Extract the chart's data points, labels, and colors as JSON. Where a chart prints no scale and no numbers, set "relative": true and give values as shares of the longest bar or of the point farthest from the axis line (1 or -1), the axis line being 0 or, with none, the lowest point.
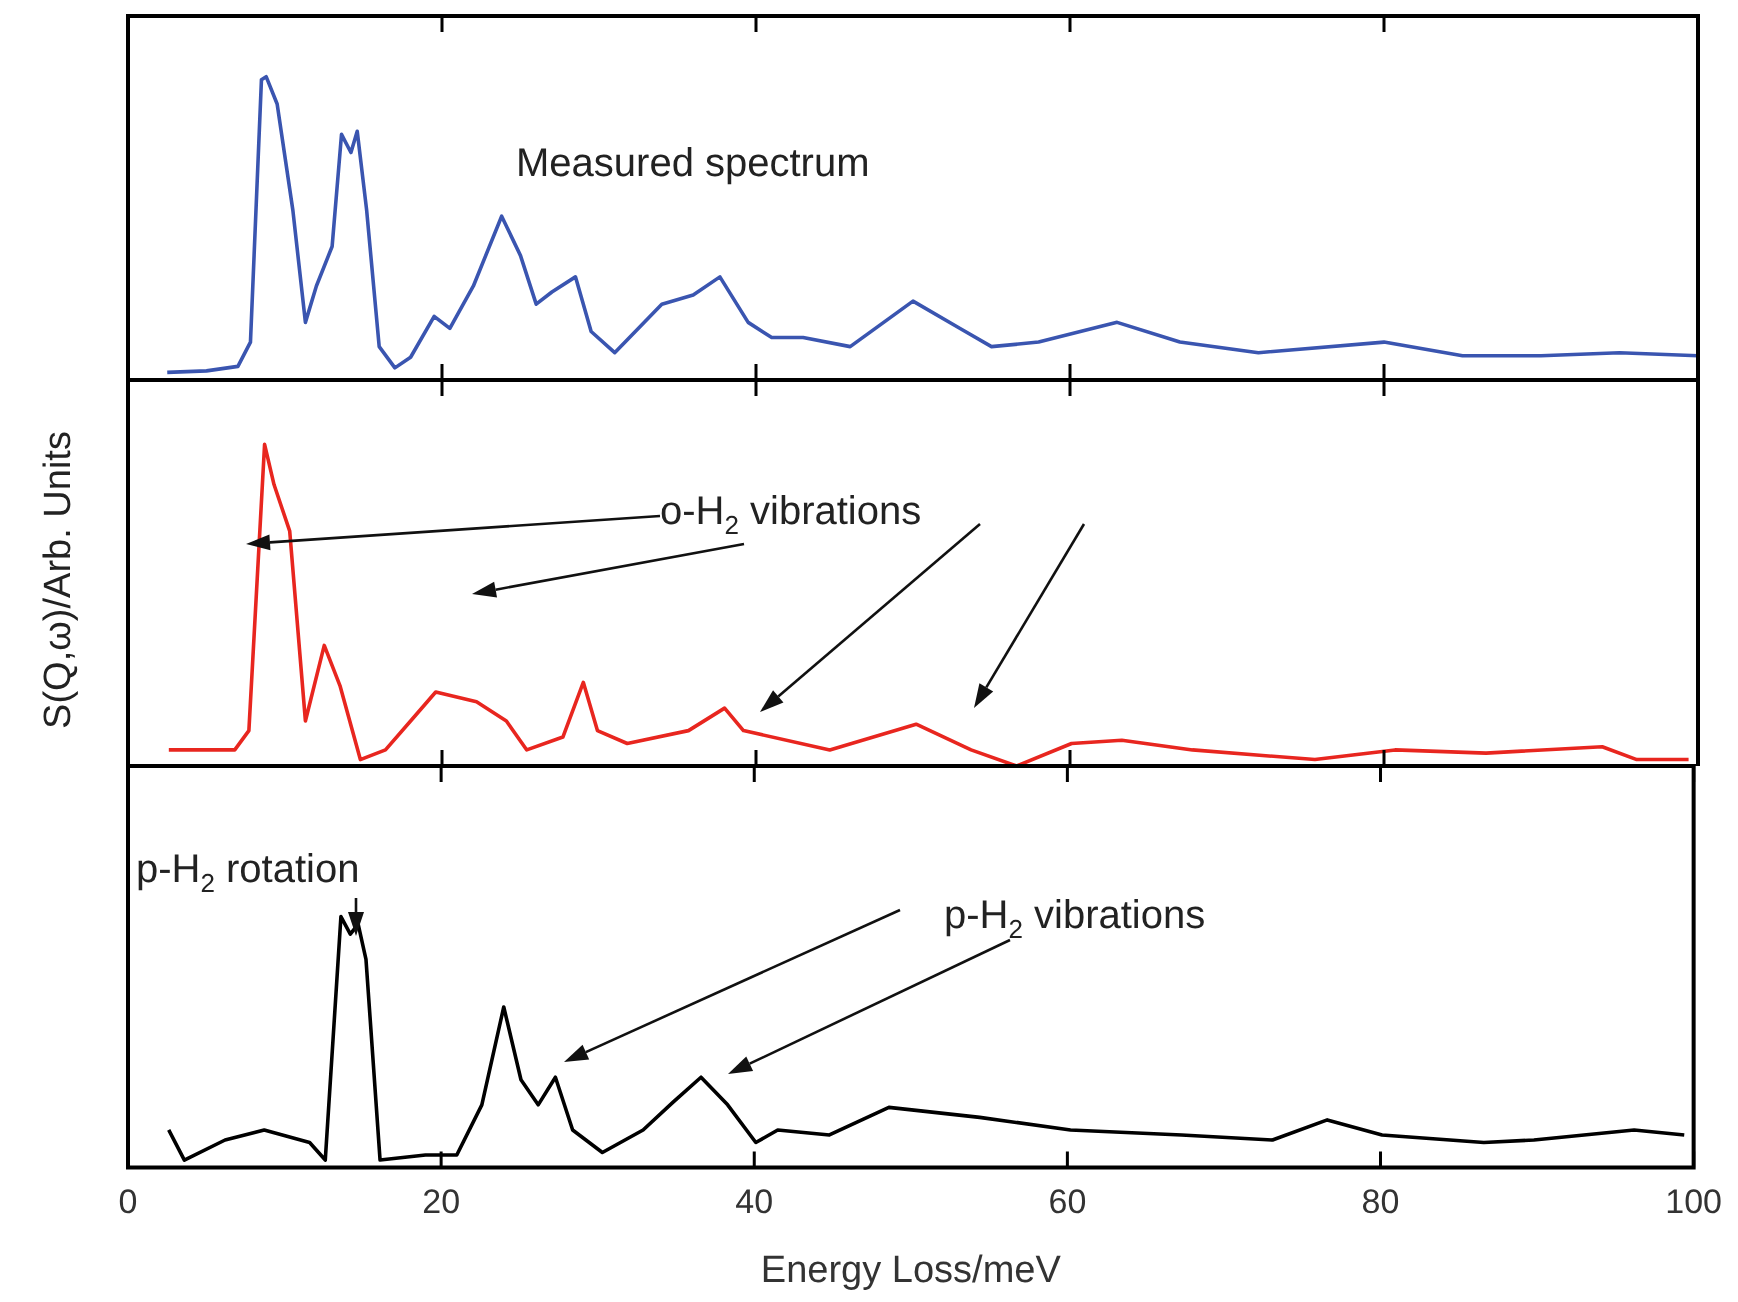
{
  "chart_data": [
    {
      "type": "line",
      "relative": true,
      "color": "#3a55b0",
      "marker": "none",
      "tick_labels": false,
      "xlim": [
        0,
        100
      ],
      "xticks": [
        0,
        20,
        40,
        60,
        80,
        100
      ],
      "annotations": [
        "Measured spectrum"
      ],
      "x": [
        2.5,
        5,
        7,
        7.8,
        8.5,
        8.8,
        9.5,
        10.5,
        11.3,
        12,
        13,
        13.6,
        14.2,
        14.6,
        15.2,
        16,
        17,
        18,
        19.5,
        20.5,
        22,
        23.8,
        25,
        26,
        27,
        28.5,
        29.5,
        31,
        34,
        36,
        37.7,
        39.5,
        41,
        43,
        46,
        50,
        53,
        55,
        58,
        63,
        67,
        72,
        80,
        85,
        90,
        95,
        100
      ],
      "values": [
        0.025,
        0.03,
        0.045,
        0.125,
        0.99,
        1,
        0.91,
        0.56,
        0.19,
        0.31,
        0.44,
        0.81,
        0.75,
        0.82,
        0.56,
        0.11,
        0.04,
        0.075,
        0.21,
        0.17,
        0.31,
        0.54,
        0.41,
        0.25,
        0.29,
        0.34,
        0.16,
        0.09,
        0.25,
        0.28,
        0.34,
        0.19,
        0.14,
        0.14,
        0.11,
        0.26,
        0.17,
        0.11,
        0.125,
        0.19,
        0.125,
        0.09,
        0.125,
        0.08,
        0.08,
        0.09,
        0.08
      ]
    },
    {
      "type": "line",
      "relative": true,
      "color": "#e8261f",
      "marker": "none",
      "tick_labels": false,
      "xlim": [
        0,
        100
      ],
      "xticks": [
        0,
        20,
        40,
        60,
        80,
        100
      ],
      "ylabel": "S(Q,ω)/Arb. Units",
      "annotations": [
        "o-H$_{2}$ vibrations"
      ],
      "x": [
        2.6,
        6.8,
        7.7,
        8.7,
        9.3,
        10.3,
        11.3,
        12.5,
        13.5,
        14.8,
        16.4,
        18,
        19.6,
        22.2,
        24.1,
        25.4,
        27.7,
        29,
        29.9,
        31.8,
        35.7,
        38,
        39.2,
        44.7,
        50.2,
        53.7,
        56.6,
        60.1,
        63.3,
        67.8,
        75.6,
        80.7,
        86.5,
        93.9,
        96.1,
        99.4
      ],
      "values": [
        0.05,
        0.05,
        0.11,
        1,
        0.875,
        0.73,
        0.14,
        0.375,
        0.25,
        0.02,
        0.05,
        0.14,
        0.23,
        0.2,
        0.14,
        0.05,
        0.09,
        0.26,
        0.11,
        0.07,
        0.11,
        0.18,
        0.11,
        0.05,
        0.13,
        0.05,
        0,
        0.07,
        0.08,
        0.05,
        0.02,
        0.05,
        0.04,
        0.06,
        0.02,
        0.02
      ]
    },
    {
      "type": "line",
      "relative": true,
      "color": "#000000",
      "marker": "none",
      "tick_labels": "x",
      "xlim": [
        0,
        100
      ],
      "xticks": [
        0,
        20,
        40,
        60,
        80,
        100
      ],
      "xlabel": "Energy Loss/meV",
      "annotations": [
        "p-H$_{2}$ rotation",
        "p-H$_{2}$ vibrations"
      ],
      "x": [
        2.6,
        3.6,
        6.2,
        8.7,
        11.6,
        12.6,
        13.6,
        14.2,
        14.7,
        15.2,
        16.1,
        19,
        21,
        22.6,
        24,
        25.1,
        26.2,
        27.3,
        28.4,
        30.3,
        32.9,
        34.8,
        36.6,
        38.3,
        40.1,
        41.5,
        44.8,
        48.6,
        54.4,
        60.2,
        67.3,
        73.1,
        76.6,
        80.1,
        86.6,
        89.8,
        96.2,
        99.4
      ],
      "values": [
        0.15,
        0.03,
        0.11,
        0.15,
        0.1,
        0.03,
        1,
        0.93,
        0.97,
        0.83,
        0.03,
        0.05,
        0.05,
        0.25,
        0.64,
        0.35,
        0.25,
        0.36,
        0.15,
        0.06,
        0.15,
        0.26,
        0.36,
        0.25,
        0.1,
        0.15,
        0.13,
        0.24,
        0.2,
        0.15,
        0.13,
        0.11,
        0.19,
        0.13,
        0.1,
        0.11,
        0.15,
        0.13
      ]
    }
  ]
}
